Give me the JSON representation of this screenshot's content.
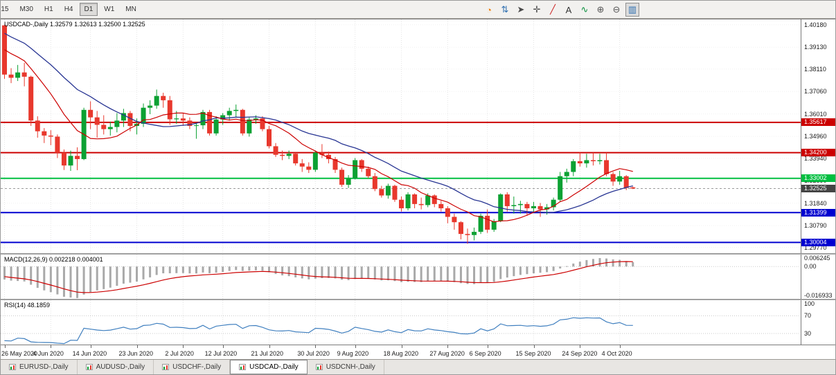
{
  "toolbar": {
    "timeframes": [
      {
        "label": "M15",
        "clipped": true,
        "active": false
      },
      {
        "label": "M30",
        "active": false
      },
      {
        "label": "H1",
        "active": false
      },
      {
        "label": "H4",
        "active": false
      },
      {
        "label": "D1",
        "active": true
      },
      {
        "label": "W1",
        "active": false
      },
      {
        "label": "MN",
        "active": false
      }
    ],
    "icons": [
      {
        "name": "mql5-community-icon",
        "glyph": "◔",
        "color": "#f07c00"
      },
      {
        "name": "new-order-icon",
        "glyph": "⇅",
        "color": "#2e6fb0"
      },
      {
        "name": "cursor-icon",
        "glyph": "➤",
        "color": "#4a4a4a"
      },
      {
        "name": "crosshair-icon",
        "glyph": "✛",
        "color": "#4a4a4a"
      },
      {
        "name": "trendline-icon",
        "glyph": "╱",
        "color": "#cc2222"
      },
      {
        "name": "text-label-icon",
        "glyph": "A",
        "color": "#333333"
      },
      {
        "name": "indicators-icon",
        "glyph": "∿",
        "color": "#0a8f3c"
      },
      {
        "name": "zoom-in-icon",
        "glyph": "⊕",
        "color": "#555555"
      },
      {
        "name": "zoom-out-icon",
        "glyph": "⊖",
        "color": "#555555"
      },
      {
        "name": "chart-mode-icon",
        "glyph": "▥",
        "color": "#2e6fb0",
        "pressed": true
      }
    ]
  },
  "chart": {
    "symbol_label": "USDCAD-,Daily",
    "ohlc_text": "1.32579 1.32613 1.32500 1.32525"
  },
  "macd": {
    "label": "MACD(12,26,9) 0.002218 0.004001"
  },
  "rsi": {
    "label": "RSI(14) 48.1859"
  },
  "tabs": {
    "items": [
      {
        "label": "EURUSD-,Daily",
        "active": false
      },
      {
        "label": "AUDUSD-,Daily",
        "active": false
      },
      {
        "label": "USDCHF-,Daily",
        "active": false
      },
      {
        "label": "USDCAD-,Daily",
        "active": true
      },
      {
        "label": "USDCNH-,Daily",
        "active": false
      }
    ]
  },
  "chart_data": {
    "type": "candlestick",
    "symbol": "USDCAD",
    "timeframe": "Daily",
    "current": {
      "open": 1.32579,
      "high": 1.32613,
      "low": 1.325,
      "close": 1.32525
    },
    "up_color": "#0ca133",
    "down_color": "#e8382d",
    "price_axis": {
      "top": 1.4043,
      "bottom": 1.295,
      "labels": [
        "1.40180",
        "1.39130",
        "1.38110",
        "1.37060",
        "1.36010",
        "1.34960",
        "1.33940",
        "1.32890",
        "1.31840",
        "1.30790",
        "1.29770"
      ]
    },
    "levels": [
      {
        "value": 1.35617,
        "label": "1.35617",
        "color": "#cc0000"
      },
      {
        "value": 1.342,
        "label": "1.34200",
        "color": "#cc0000"
      },
      {
        "value": 1.33002,
        "label": "1.33002",
        "color": "#00bf40"
      },
      {
        "value": 1.31399,
        "label": "1.31399",
        "color": "#0000d0"
      },
      {
        "value": 1.30004,
        "label": "1.30004",
        "color": "#0000d0"
      }
    ],
    "bid": {
      "value": 1.32525,
      "label": "1.32525",
      "color": "#444444"
    },
    "ma_fast": {
      "period": 10,
      "color": "#cc0000"
    },
    "ma_slow": {
      "period": 21,
      "color": "#283593"
    },
    "pre_closes": [
      1.413,
      1.4125,
      1.41,
      1.4085,
      1.406,
      1.4075,
      1.404,
      1.402,
      1.4035,
      1.4,
      1.398,
      1.3995,
      1.396,
      1.3945,
      1.396,
      1.393,
      1.3905,
      1.389,
      1.3905,
      1.388,
      1.3855
    ],
    "candles": [
      [
        1.4015,
        1.4018,
        1.3765,
        1.3785
      ],
      [
        1.3785,
        1.3815,
        1.3745,
        1.377
      ],
      [
        1.377,
        1.383,
        1.3755,
        1.3795
      ],
      [
        1.3795,
        1.384,
        1.373,
        1.3775
      ],
      [
        1.3775,
        1.378,
        1.3545,
        1.357
      ],
      [
        1.357,
        1.359,
        1.349,
        1.352
      ],
      [
        1.352,
        1.3535,
        1.3465,
        1.35
      ],
      [
        1.35,
        1.3525,
        1.3455,
        1.3495
      ],
      [
        1.3495,
        1.3505,
        1.3395,
        1.342
      ],
      [
        1.342,
        1.3435,
        1.3339,
        1.336
      ],
      [
        1.336,
        1.343,
        1.3335,
        1.3405
      ],
      [
        1.3405,
        1.3445,
        1.3338,
        1.339
      ],
      [
        1.339,
        1.363,
        1.3385,
        1.362
      ],
      [
        1.362,
        1.366,
        1.353,
        1.3585
      ],
      [
        1.3585,
        1.3615,
        1.349,
        1.355
      ],
      [
        1.355,
        1.3595,
        1.3505,
        1.353
      ],
      [
        1.353,
        1.3565,
        1.35,
        1.354
      ],
      [
        1.354,
        1.3605,
        1.3515,
        1.357
      ],
      [
        1.357,
        1.3625,
        1.354,
        1.3605
      ],
      [
        1.3605,
        1.3615,
        1.352,
        1.3545
      ],
      [
        1.3545,
        1.358,
        1.3505,
        1.3555
      ],
      [
        1.3555,
        1.365,
        1.354,
        1.363
      ],
      [
        1.363,
        1.3665,
        1.36,
        1.364
      ],
      [
        1.364,
        1.3715,
        1.3625,
        1.3685
      ],
      [
        1.3685,
        1.37,
        1.363,
        1.3665
      ],
      [
        1.3665,
        1.3685,
        1.355,
        1.3576
      ],
      [
        1.3576,
        1.3615,
        1.3555,
        1.358
      ],
      [
        1.358,
        1.3605,
        1.3545,
        1.357
      ],
      [
        1.357,
        1.3585,
        1.353,
        1.3545
      ],
      [
        1.3545,
        1.356,
        1.3485,
        1.3548
      ],
      [
        1.3548,
        1.362,
        1.353,
        1.361
      ],
      [
        1.361,
        1.362,
        1.35,
        1.351
      ],
      [
        1.351,
        1.359,
        1.35,
        1.3575
      ],
      [
        1.3575,
        1.3605,
        1.355,
        1.3595
      ],
      [
        1.3595,
        1.363,
        1.357,
        1.3615
      ],
      [
        1.3615,
        1.3645,
        1.3585,
        1.362
      ],
      [
        1.362,
        1.3625,
        1.35,
        1.351
      ],
      [
        1.351,
        1.3585,
        1.3495,
        1.3575
      ],
      [
        1.3575,
        1.3595,
        1.3555,
        1.358
      ],
      [
        1.358,
        1.359,
        1.352,
        1.353
      ],
      [
        1.353,
        1.3545,
        1.344,
        1.345
      ],
      [
        1.345,
        1.3465,
        1.34,
        1.341
      ],
      [
        1.341,
        1.343,
        1.3385,
        1.3405
      ],
      [
        1.3405,
        1.343,
        1.339,
        1.3415
      ],
      [
        1.3415,
        1.342,
        1.336,
        1.337
      ],
      [
        1.337,
        1.339,
        1.333,
        1.3355
      ],
      [
        1.3355,
        1.3375,
        1.3325,
        1.334
      ],
      [
        1.334,
        1.343,
        1.333,
        1.342
      ],
      [
        1.342,
        1.346,
        1.3395,
        1.341
      ],
      [
        1.341,
        1.3425,
        1.337,
        1.339
      ],
      [
        1.339,
        1.34,
        1.3325,
        1.334
      ],
      [
        1.334,
        1.335,
        1.326,
        1.327
      ],
      [
        1.327,
        1.3315,
        1.3255,
        1.33
      ],
      [
        1.33,
        1.3395,
        1.3295,
        1.3385
      ],
      [
        1.3385,
        1.339,
        1.333,
        1.3345
      ],
      [
        1.3345,
        1.3355,
        1.33,
        1.331
      ],
      [
        1.331,
        1.3325,
        1.324,
        1.325
      ],
      [
        1.325,
        1.3265,
        1.321,
        1.322
      ],
      [
        1.322,
        1.3275,
        1.3205,
        1.3265
      ],
      [
        1.3265,
        1.327,
        1.319,
        1.32
      ],
      [
        1.32,
        1.3215,
        1.3145,
        1.316
      ],
      [
        1.316,
        1.3235,
        1.315,
        1.3225
      ],
      [
        1.3225,
        1.323,
        1.316,
        1.318
      ],
      [
        1.318,
        1.321,
        1.3155,
        1.3175
      ],
      [
        1.3175,
        1.323,
        1.3165,
        1.322
      ],
      [
        1.322,
        1.3225,
        1.3165,
        1.318
      ],
      [
        1.318,
        1.3195,
        1.3145,
        1.316
      ],
      [
        1.316,
        1.317,
        1.309,
        1.312
      ],
      [
        1.312,
        1.3135,
        1.306,
        1.3095
      ],
      [
        1.3095,
        1.31,
        1.3015,
        1.304
      ],
      [
        1.304,
        1.3065,
        1.2994,
        1.3035
      ],
      [
        1.3035,
        1.307,
        1.301,
        1.305
      ],
      [
        1.305,
        1.3135,
        1.304,
        1.3125
      ],
      [
        1.3125,
        1.3155,
        1.3045,
        1.306
      ],
      [
        1.306,
        1.311,
        1.305,
        1.31
      ],
      [
        1.31,
        1.323,
        1.3095,
        1.3225
      ],
      [
        1.3225,
        1.3235,
        1.3145,
        1.317
      ],
      [
        1.317,
        1.3215,
        1.3135,
        1.3175
      ],
      [
        1.3175,
        1.3195,
        1.3135,
        1.318
      ],
      [
        1.318,
        1.319,
        1.3125,
        1.316
      ],
      [
        1.316,
        1.319,
        1.314,
        1.317
      ],
      [
        1.317,
        1.3185,
        1.312,
        1.3155
      ],
      [
        1.3155,
        1.318,
        1.313,
        1.3165
      ],
      [
        1.3165,
        1.321,
        1.315,
        1.32
      ],
      [
        1.32,
        1.333,
        1.319,
        1.331
      ],
      [
        1.331,
        1.3345,
        1.328,
        1.333
      ],
      [
        1.333,
        1.339,
        1.331,
        1.338
      ],
      [
        1.338,
        1.342,
        1.3355,
        1.337
      ],
      [
        1.337,
        1.3415,
        1.335,
        1.3385
      ],
      [
        1.3385,
        1.342,
        1.336,
        1.338
      ],
      [
        1.338,
        1.3415,
        1.3365,
        1.3385
      ],
      [
        1.3385,
        1.342,
        1.331,
        1.332
      ],
      [
        1.332,
        1.333,
        1.3265,
        1.3285
      ],
      [
        1.3285,
        1.3335,
        1.327,
        1.331
      ],
      [
        1.331,
        1.3315,
        1.3245,
        1.3255
      ],
      [
        1.32579,
        1.32613,
        1.325,
        1.32525
      ]
    ],
    "macd_indicator": {
      "fast": 12,
      "slow": 26,
      "signal_period": 9,
      "current_main": 0.002218,
      "current_signal": 0.004001,
      "axis_top": 0.006245,
      "axis_bottom": -0.016933,
      "axis_labels": [
        {
          "value": 0.006245,
          "text": "0.006245"
        },
        {
          "value": 0,
          "text": "0.00"
        },
        {
          "value": -0.016933,
          "text": "-0.016933"
        }
      ],
      "hist_color": "#a9a9a9",
      "signal_color": "#cc0000"
    },
    "rsi_indicator": {
      "period": 14,
      "current": 48.1859,
      "level_lines": [
        70,
        30
      ],
      "axis_labels": [
        {
          "value": 100,
          "text": "100"
        },
        {
          "value": 70,
          "text": "70"
        },
        {
          "value": 30,
          "text": "30"
        }
      ],
      "color": "#3f7fbf"
    },
    "time_ticks": [
      {
        "i": 0,
        "label": "26 May 2020"
      },
      {
        "i": 7,
        "label": "4 Jun 2020"
      },
      {
        "i": 13,
        "label": "14 Jun 2020"
      },
      {
        "i": 20,
        "label": "23 Jun 2020"
      },
      {
        "i": 27,
        "label": "2 Jul 2020"
      },
      {
        "i": 33,
        "label": "12 Jul 2020"
      },
      {
        "i": 40,
        "label": "21 Jul 2020"
      },
      {
        "i": 47,
        "label": "30 Jul 2020"
      },
      {
        "i": 53,
        "label": "9 Aug 2020"
      },
      {
        "i": 60,
        "label": "18 Aug 2020"
      },
      {
        "i": 67,
        "label": "27 Aug 2020"
      },
      {
        "i": 73,
        "label": "6 Sep 2020"
      },
      {
        "i": 80,
        "label": "15 Sep 2020"
      },
      {
        "i": 87,
        "label": "24 Sep 2020"
      },
      {
        "i": 93,
        "label": "4 Oct 2020"
      }
    ]
  }
}
